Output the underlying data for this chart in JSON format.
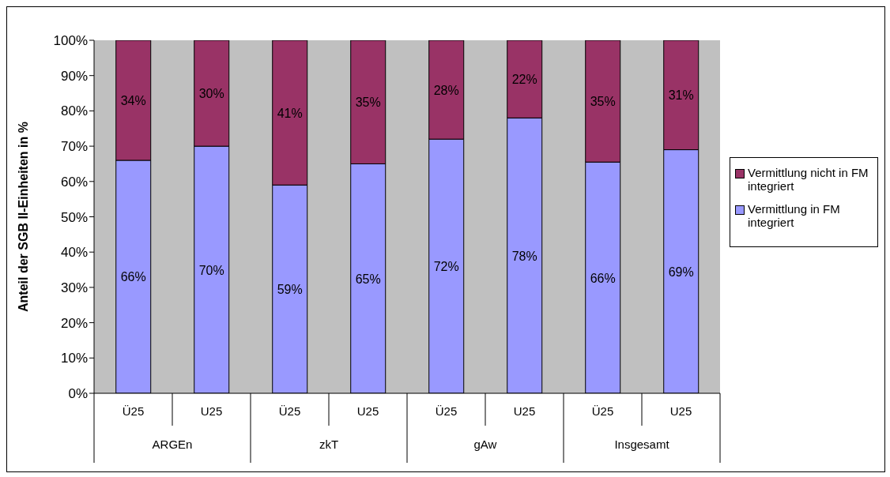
{
  "chart_data": {
    "type": "bar",
    "stacked": true,
    "categories": [
      "Ü25",
      "U25",
      "Ü25",
      "U25",
      "Ü25",
      "U25",
      "Ü25",
      "U25"
    ],
    "annotations": [
      "ARGEn",
      "zkT",
      "gAw",
      "Insgesamt"
    ],
    "ylabel": "Anteil der SGB II-Einheiten in %",
    "ylim": [
      0,
      100
    ],
    "yticks": [
      {
        "value": 0,
        "label": "0%"
      },
      {
        "value": 10,
        "label": "10%"
      },
      {
        "value": 20,
        "label": "20%"
      },
      {
        "value": 30,
        "label": "30%"
      },
      {
        "value": 40,
        "label": "40%"
      },
      {
        "value": 50,
        "label": "50%"
      },
      {
        "value": 60,
        "label": "60%"
      },
      {
        "value": 70,
        "label": "70%"
      },
      {
        "value": 80,
        "label": "80%"
      },
      {
        "value": 90,
        "label": "90%"
      },
      {
        "value": 100,
        "label": "100%"
      }
    ],
    "series": [
      {
        "name": "Vermittlung in FM integriert",
        "color": "#9999ff",
        "values": [
          66,
          70,
          59,
          65,
          72,
          78,
          65.5,
          69
        ],
        "value_labels": [
          "66%",
          "70%",
          "59%",
          "65%",
          "72%",
          "78%",
          "66%",
          "69%"
        ]
      },
      {
        "name": "Vermittlung nicht in FM integriert",
        "color": "#993366",
        "values": [
          34,
          30,
          41,
          35,
          28,
          22,
          34.5,
          31
        ],
        "value_labels": [
          "34%",
          "30%",
          "41%",
          "35%",
          "28%",
          "22%",
          "35%",
          "31%"
        ]
      }
    ],
    "legend": "right",
    "grid": false
  }
}
